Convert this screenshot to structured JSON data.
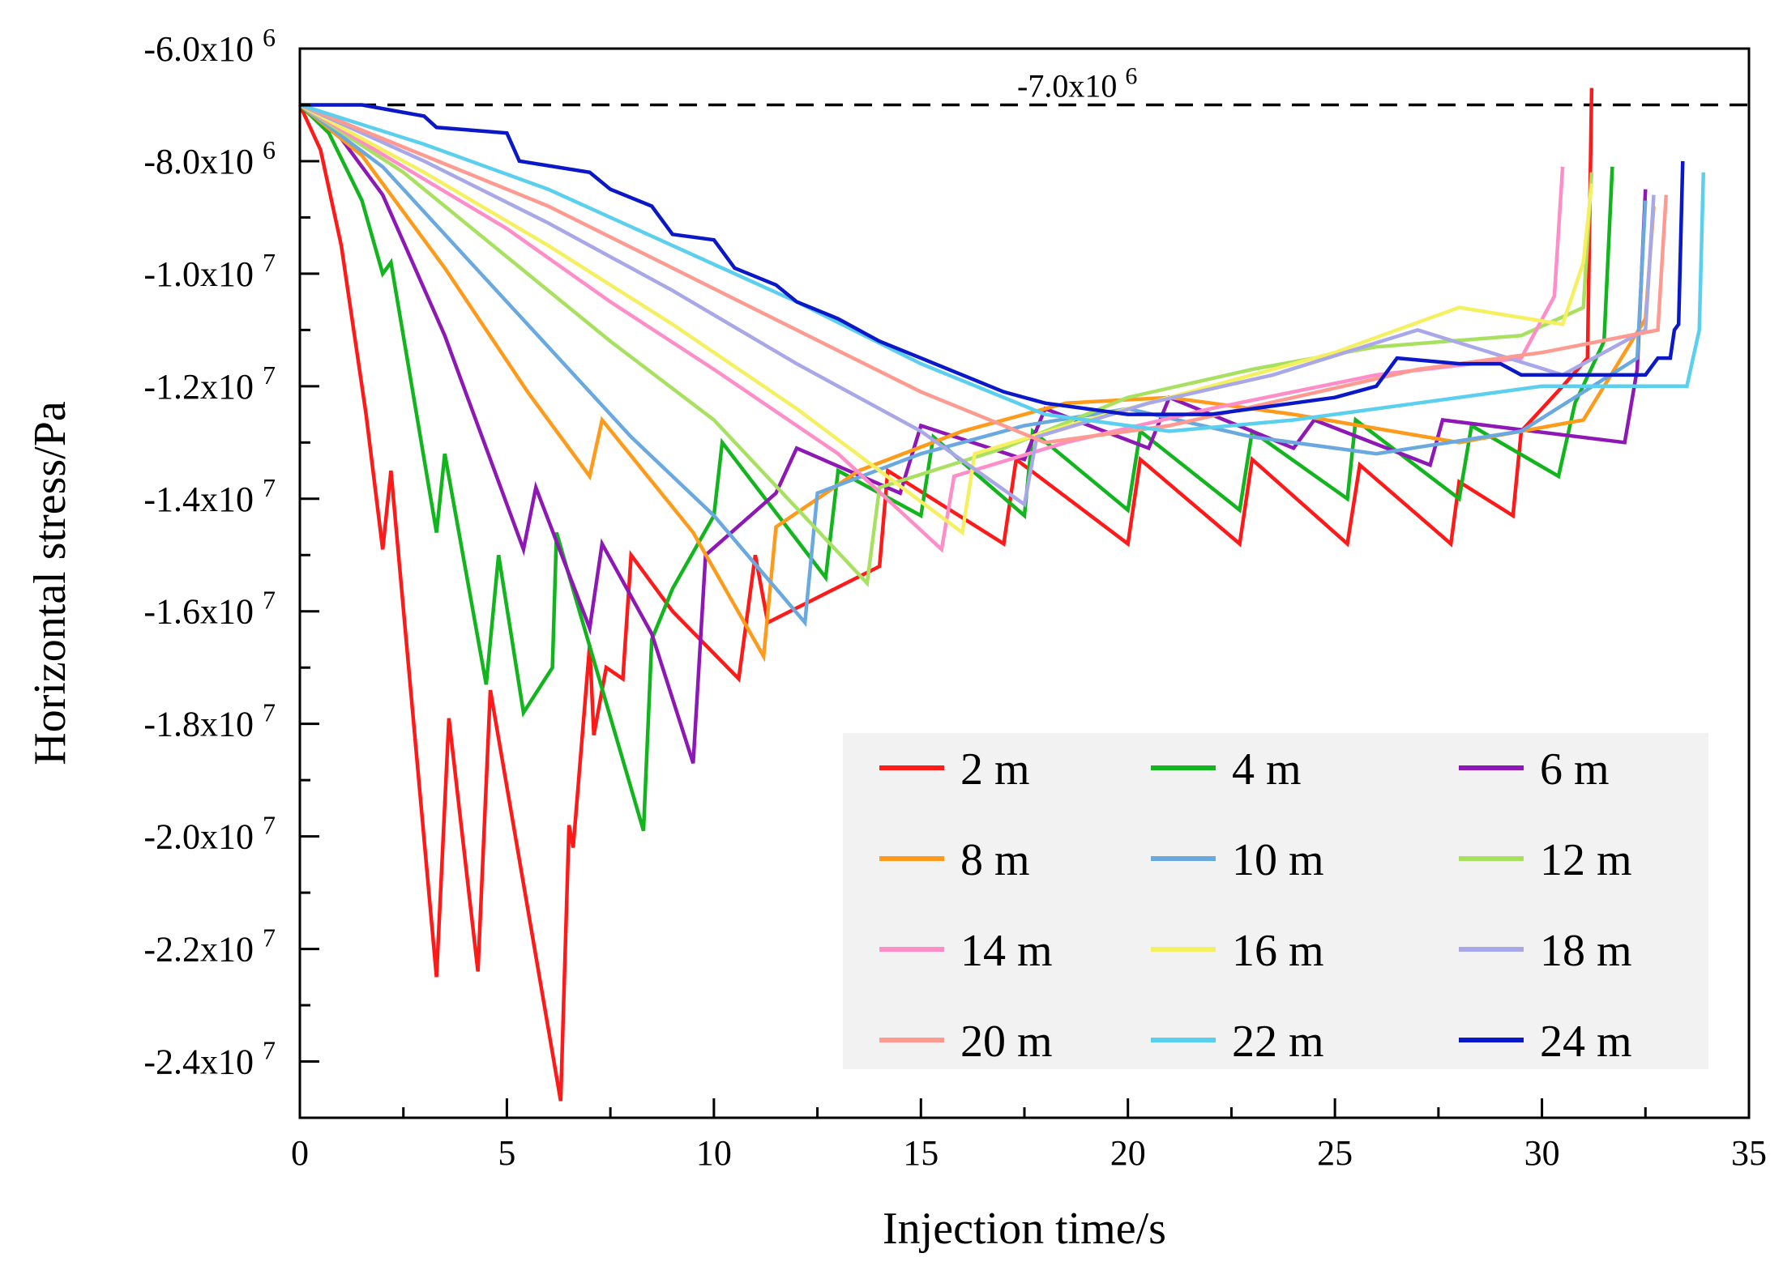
{
  "chart_data": {
    "type": "line",
    "title": "",
    "xlabel": "Injection time/s",
    "ylabel": "Horizontal stress/Pa",
    "xlim": [
      0,
      35
    ],
    "ylim": [
      -25000000,
      -6000000
    ],
    "x_ticks": [
      0,
      5,
      10,
      15,
      20,
      25,
      30,
      35
    ],
    "x_tick_labels": [
      "0",
      "5",
      "10",
      "15",
      "20",
      "25",
      "30",
      "35"
    ],
    "y_ticks": [
      -6000000,
      -8000000,
      -10000000,
      -12000000,
      -14000000,
      -16000000,
      -18000000,
      -20000000,
      -22000000,
      -24000000
    ],
    "y_tick_labels": [
      {
        "mantissa": "-6.0x10",
        "exp": "6"
      },
      {
        "mantissa": "-8.0x10",
        "exp": "6"
      },
      {
        "mantissa": "-1.0x10",
        "exp": "7"
      },
      {
        "mantissa": "-1.2x10",
        "exp": "7"
      },
      {
        "mantissa": "-1.4x10",
        "exp": "7"
      },
      {
        "mantissa": "-1.6x10",
        "exp": "7"
      },
      {
        "mantissa": "-1.8x10",
        "exp": "7"
      },
      {
        "mantissa": "-2.0x10",
        "exp": "7"
      },
      {
        "mantissa": "-2.2x10",
        "exp": "7"
      },
      {
        "mantissa": "-2.4x10",
        "exp": "7"
      }
    ],
    "reference_line": {
      "y": -7000000,
      "label_mantissa": "-7.0x10",
      "label_exp": "6",
      "style": "dashed"
    },
    "legend_position": "bottom-right",
    "series": [
      {
        "name": "2 m",
        "color": "#ff1a1a",
        "points": [
          [
            0,
            -7000000.0
          ],
          [
            0.5,
            -7800000.0
          ],
          [
            1.0,
            -9500000.0
          ],
          [
            1.6,
            -12500000.0
          ],
          [
            2.0,
            -14900000.0
          ],
          [
            2.2,
            -13500000.0
          ],
          [
            3.3,
            -22500000.0
          ],
          [
            3.6,
            -17900000.0
          ],
          [
            4.3,
            -22400000.0
          ],
          [
            4.6,
            -17400000.0
          ],
          [
            6.3,
            -24700000.0
          ],
          [
            6.5,
            -19800000.0
          ],
          [
            6.6,
            -20200000.0
          ],
          [
            7.0,
            -16600000.0
          ],
          [
            7.1,
            -18200000.0
          ],
          [
            7.4,
            -17000000.0
          ],
          [
            7.8,
            -17200000.0
          ],
          [
            8.0,
            -15000000.0
          ],
          [
            9.0,
            -16000000.0
          ],
          [
            10.6,
            -17200000.0
          ],
          [
            11.0,
            -15000000.0
          ],
          [
            11.3,
            -16200000.0
          ],
          [
            14.0,
            -15200000.0
          ],
          [
            14.2,
            -13500000.0
          ],
          [
            17.0,
            -14800000.0
          ],
          [
            17.3,
            -13300000.0
          ],
          [
            20.0,
            -14800000.0
          ],
          [
            20.3,
            -13300000.0
          ],
          [
            22.7,
            -14800000.0
          ],
          [
            23.0,
            -13300000.0
          ],
          [
            25.3,
            -14800000.0
          ],
          [
            25.6,
            -13400000.0
          ],
          [
            27.8,
            -14800000.0
          ],
          [
            28.0,
            -13700000.0
          ],
          [
            29.3,
            -14300000.0
          ],
          [
            29.5,
            -12800000.0
          ],
          [
            30.5,
            -12000000.0
          ],
          [
            31.1,
            -11500000.0
          ],
          [
            31.2,
            -6700000.0
          ]
        ]
      },
      {
        "name": "4 m",
        "color": "#12b51e",
        "points": [
          [
            0,
            -7000000.0
          ],
          [
            0.7,
            -7500000.0
          ],
          [
            1.5,
            -8700000.0
          ],
          [
            2.0,
            -10000000.0
          ],
          [
            2.2,
            -9800000.0
          ],
          [
            3.3,
            -14600000.0
          ],
          [
            3.5,
            -13200000.0
          ],
          [
            4.5,
            -17300000.0
          ],
          [
            4.8,
            -15000000.0
          ],
          [
            5.4,
            -17800000.0
          ],
          [
            6.1,
            -17000000.0
          ],
          [
            6.2,
            -14600000.0
          ],
          [
            8.3,
            -19900000.0
          ],
          [
            8.5,
            -16500000.0
          ],
          [
            9.0,
            -15600000.0
          ],
          [
            10.0,
            -14300000.0
          ],
          [
            10.2,
            -13000000.0
          ],
          [
            12.7,
            -15400000.0
          ],
          [
            13.0,
            -13500000.0
          ],
          [
            15.0,
            -14300000.0
          ],
          [
            15.3,
            -12900000.0
          ],
          [
            17.5,
            -14300000.0
          ],
          [
            17.7,
            -12800000.0
          ],
          [
            20.0,
            -14200000.0
          ],
          [
            20.3,
            -12800000.0
          ],
          [
            22.7,
            -14200000.0
          ],
          [
            23.0,
            -12800000.0
          ],
          [
            25.3,
            -14000000.0
          ],
          [
            25.5,
            -12600000.0
          ],
          [
            28.0,
            -14000000.0
          ],
          [
            28.3,
            -12700000.0
          ],
          [
            30.4,
            -13600000.0
          ],
          [
            30.8,
            -12300000.0
          ],
          [
            31.5,
            -11200000.0
          ],
          [
            31.7,
            -8100000.0
          ]
        ]
      },
      {
        "name": "6 m",
        "color": "#8e18b5",
        "points": [
          [
            0,
            -7000000.0
          ],
          [
            1.0,
            -7600000.0
          ],
          [
            2.0,
            -8600000.0
          ],
          [
            3.5,
            -11100000.0
          ],
          [
            5.4,
            -14900000.0
          ],
          [
            5.7,
            -13800000.0
          ],
          [
            7.0,
            -16300000.0
          ],
          [
            7.3,
            -14800000.0
          ],
          [
            8.5,
            -16400000.0
          ],
          [
            9.5,
            -18700000.0
          ],
          [
            9.8,
            -15000000.0
          ],
          [
            11.5,
            -13900000.0
          ],
          [
            12.0,
            -13100000.0
          ],
          [
            14.5,
            -13900000.0
          ],
          [
            15.0,
            -12700000.0
          ],
          [
            17.5,
            -13300000.0
          ],
          [
            18.0,
            -12400000.0
          ],
          [
            20.5,
            -13100000.0
          ],
          [
            21.0,
            -12200000.0
          ],
          [
            24.0,
            -13100000.0
          ],
          [
            24.5,
            -12600000.0
          ],
          [
            27.3,
            -13400000.0
          ],
          [
            27.6,
            -12600000.0
          ],
          [
            32.0,
            -13000000.0
          ],
          [
            32.3,
            -11700000.0
          ],
          [
            32.5,
            -8500000.0
          ]
        ]
      },
      {
        "name": "8 m",
        "color": "#ff9a1a",
        "points": [
          [
            0,
            -7000000.0
          ],
          [
            1.5,
            -7900000.0
          ],
          [
            3.5,
            -9900000.0
          ],
          [
            5.5,
            -12100000.0
          ],
          [
            7.0,
            -13600000.0
          ],
          [
            7.3,
            -12600000.0
          ],
          [
            9.5,
            -14600000.0
          ],
          [
            11.2,
            -16800000.0
          ],
          [
            11.5,
            -14500000.0
          ],
          [
            13.5,
            -13500000.0
          ],
          [
            16.0,
            -12800000.0
          ],
          [
            18.5,
            -12300000.0
          ],
          [
            21.0,
            -12200000.0
          ],
          [
            24.0,
            -12500000.0
          ],
          [
            28.0,
            -13000000.0
          ],
          [
            31.0,
            -12600000.0
          ],
          [
            32.5,
            -10800000.0
          ],
          [
            32.7,
            -8800000.0
          ]
        ]
      },
      {
        "name": "10 m",
        "color": "#6aa9e0",
        "points": [
          [
            0,
            -7000000.0
          ],
          [
            2.0,
            -8100000.0
          ],
          [
            4.0,
            -9700000.0
          ],
          [
            6.0,
            -11300000.0
          ],
          [
            8.0,
            -12900000.0
          ],
          [
            10.0,
            -14300000.0
          ],
          [
            12.2,
            -16200000.0
          ],
          [
            12.5,
            -13900000.0
          ],
          [
            15.0,
            -13200000.0
          ],
          [
            17.5,
            -12700000.0
          ],
          [
            20.0,
            -12400000.0
          ],
          [
            23.0,
            -12900000.0
          ],
          [
            26.0,
            -13200000.0
          ],
          [
            29.5,
            -12800000.0
          ],
          [
            32.3,
            -11500000.0
          ],
          [
            32.5,
            -8700000.0
          ]
        ]
      },
      {
        "name": "12 m",
        "color": "#a8e060",
        "points": [
          [
            0,
            -7000000.0
          ],
          [
            2.5,
            -8200000.0
          ],
          [
            5.0,
            -9700000.0
          ],
          [
            7.5,
            -11200000.0
          ],
          [
            10.0,
            -12600000.0
          ],
          [
            13.7,
            -15500000.0
          ],
          [
            14.0,
            -13800000.0
          ],
          [
            17.0,
            -13100000.0
          ],
          [
            20.0,
            -12200000.0
          ],
          [
            23.0,
            -11700000.0
          ],
          [
            26.0,
            -11300000.0
          ],
          [
            29.5,
            -11100000.0
          ],
          [
            31.0,
            -10600000.0
          ],
          [
            31.2,
            -8200000.0
          ]
        ]
      },
      {
        "name": "14 m",
        "color": "#ff8ec8",
        "points": [
          [
            0,
            -7000000.0
          ],
          [
            2.5,
            -8100000.0
          ],
          [
            5.0,
            -9200000.0
          ],
          [
            7.5,
            -10500000.0
          ],
          [
            10.0,
            -11700000.0
          ],
          [
            13.0,
            -13200000.0
          ],
          [
            15.5,
            -14900000.0
          ],
          [
            15.8,
            -13600000.0
          ],
          [
            18.5,
            -13000000.0
          ],
          [
            22.0,
            -12400000.0
          ],
          [
            26.0,
            -11800000.0
          ],
          [
            29.5,
            -11500000.0
          ],
          [
            30.3,
            -10400000.0
          ],
          [
            30.5,
            -8100000.0
          ]
        ]
      },
      {
        "name": "16 m",
        "color": "#f5f060",
        "points": [
          [
            0,
            -7000000.0
          ],
          [
            3.0,
            -8200000.0
          ],
          [
            6.0,
            -9500000.0
          ],
          [
            9.0,
            -10900000.0
          ],
          [
            12.0,
            -12400000.0
          ],
          [
            16.0,
            -14600000.0
          ],
          [
            16.3,
            -13200000.0
          ],
          [
            19.0,
            -12600000.0
          ],
          [
            22.0,
            -12000000.0
          ],
          [
            25.0,
            -11400000.0
          ],
          [
            28.0,
            -10600000.0
          ],
          [
            30.5,
            -10900000.0
          ],
          [
            31.0,
            -9800000.0
          ],
          [
            31.2,
            -8400000.0
          ]
        ]
      },
      {
        "name": "18 m",
        "color": "#a8a8e8",
        "points": [
          [
            0,
            -7000000.0
          ],
          [
            3.0,
            -8000000.0
          ],
          [
            6.0,
            -9100000.0
          ],
          [
            9.0,
            -10300000.0
          ],
          [
            12.0,
            -11600000.0
          ],
          [
            15.0,
            -12800000.0
          ],
          [
            17.5,
            -14100000.0
          ],
          [
            17.8,
            -12900000.0
          ],
          [
            20.5,
            -12300000.0
          ],
          [
            23.5,
            -11800000.0
          ],
          [
            27.0,
            -11000000.0
          ],
          [
            30.5,
            -11800000.0
          ],
          [
            32.5,
            -11000000.0
          ],
          [
            32.7,
            -8600000.0
          ]
        ]
      },
      {
        "name": "20 m",
        "color": "#ff9a90",
        "points": [
          [
            0,
            -7000000.0
          ],
          [
            3.0,
            -7900000.0
          ],
          [
            6.0,
            -8800000.0
          ],
          [
            9.0,
            -9900000.0
          ],
          [
            12.0,
            -11000000.0
          ],
          [
            15.0,
            -12100000.0
          ],
          [
            18.0,
            -13000000.0
          ],
          [
            21.0,
            -12700000.0
          ],
          [
            24.0,
            -12200000.0
          ],
          [
            27.0,
            -11700000.0
          ],
          [
            30.0,
            -11400000.0
          ],
          [
            32.8,
            -11000000.0
          ],
          [
            33.0,
            -8600000.0
          ]
        ]
      },
      {
        "name": "22 m",
        "color": "#5ad0ee",
        "points": [
          [
            0,
            -7000000.0
          ],
          [
            3.0,
            -7700000.0
          ],
          [
            6.0,
            -8500000.0
          ],
          [
            9.0,
            -9500000.0
          ],
          [
            12.0,
            -10500000.0
          ],
          [
            15.0,
            -11600000.0
          ],
          [
            18.0,
            -12500000.0
          ],
          [
            21.0,
            -12800000.0
          ],
          [
            24.0,
            -12600000.0
          ],
          [
            27.0,
            -12300000.0
          ],
          [
            30.0,
            -12000000.0
          ],
          [
            33.5,
            -12000000.0
          ],
          [
            33.8,
            -11000000.0
          ],
          [
            33.9,
            -8200000.0
          ]
        ]
      },
      {
        "name": "24 m",
        "color": "#0b18c8",
        "points": [
          [
            0,
            -7000000.0
          ],
          [
            1.5,
            -7000000.0
          ],
          [
            3.0,
            -7200000.0
          ],
          [
            3.3,
            -7400000.0
          ],
          [
            5.0,
            -7500000.0
          ],
          [
            5.3,
            -8000000.0
          ],
          [
            7.0,
            -8200000.0
          ],
          [
            7.5,
            -8500000.0
          ],
          [
            8.5,
            -8800000.0
          ],
          [
            9.0,
            -9300000.0
          ],
          [
            10.0,
            -9400000.0
          ],
          [
            10.5,
            -9900000.0
          ],
          [
            11.5,
            -10200000.0
          ],
          [
            12.0,
            -10500000.0
          ],
          [
            13.0,
            -10800000.0
          ],
          [
            14.0,
            -11200000.0
          ],
          [
            15.0,
            -11500000.0
          ],
          [
            16.0,
            -11800000.0
          ],
          [
            17.0,
            -12100000.0
          ],
          [
            18.0,
            -12300000.0
          ],
          [
            19.0,
            -12400000.0
          ],
          [
            20.0,
            -12500000.0
          ],
          [
            21.0,
            -12500000.0
          ],
          [
            22.0,
            -12500000.0
          ],
          [
            23.0,
            -12400000.0
          ],
          [
            24.0,
            -12300000.0
          ],
          [
            25.0,
            -12200000.0
          ],
          [
            26.0,
            -12000000.0
          ],
          [
            26.5,
            -11500000.0
          ],
          [
            28.0,
            -11600000.0
          ],
          [
            29.0,
            -11600000.0
          ],
          [
            29.5,
            -11800000.0
          ],
          [
            30.0,
            -11800000.0
          ],
          [
            31.0,
            -11800000.0
          ],
          [
            32.5,
            -11800000.0
          ],
          [
            32.8,
            -11500000.0
          ],
          [
            33.1,
            -11500000.0
          ],
          [
            33.2,
            -11000000.0
          ],
          [
            33.3,
            -10900000.0
          ],
          [
            33.4,
            -8000000.0
          ]
        ]
      }
    ]
  }
}
